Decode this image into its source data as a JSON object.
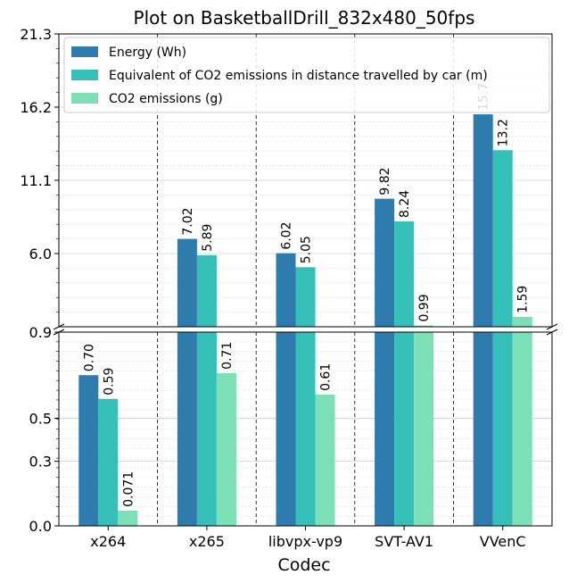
{
  "chart_data": {
    "type": "bar",
    "title": "Plot on BasketballDrill_832x480_50fps",
    "xlabel": "Codec",
    "ylabel": "",
    "categories": [
      "x264",
      "x265",
      "libvpx-vp9",
      "SVT-AV1",
      "VVenC"
    ],
    "series": [
      {
        "name": "Energy (Wh)",
        "color": "#2e7bad",
        "values": [
          0.7,
          7.02,
          6.02,
          9.82,
          15.7
        ],
        "labels": [
          "0.70",
          "7.02",
          "6.02",
          "9.82",
          "15.7"
        ]
      },
      {
        "name": "Equivalent of CO2 emissions in distance travelled by car (m)",
        "color": "#35bfb9",
        "values": [
          0.59,
          5.89,
          5.05,
          8.24,
          13.2
        ],
        "labels": [
          "0.59",
          "5.89",
          "5.05",
          "8.24",
          "13.2"
        ]
      },
      {
        "name": "CO2 emissions (g)",
        "color": "#7ddfb6",
        "values": [
          0.071,
          0.71,
          0.61,
          0.99,
          1.59
        ],
        "labels": [
          "0.071",
          "0.71",
          "0.61",
          "0.99",
          "1.59"
        ]
      }
    ],
    "axis": {
      "broken": true,
      "lower_range": [
        0.0,
        0.9
      ],
      "upper_range": [
        0.9,
        21.3
      ],
      "lower_ticks": [
        "0.0",
        "0.3",
        "0.5",
        "0.9"
      ],
      "upper_ticks": [
        "6.0",
        "11.1",
        "16.2",
        "21.3"
      ]
    },
    "legend_position": "top-left",
    "grid": true
  }
}
